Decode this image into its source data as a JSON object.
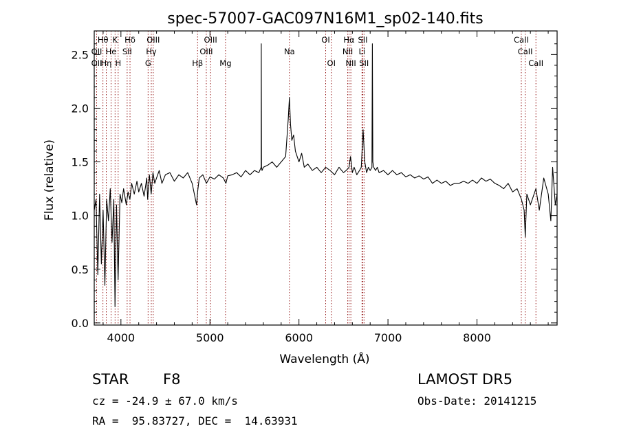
{
  "chart_data": {
    "type": "line",
    "title": "spec-57007-GAC097N16M1_sp02-140.fits",
    "xlabel": "Wavelength (Å)",
    "ylabel": "Flux (relative)",
    "xlim": [
      3700,
      8900
    ],
    "ylim": [
      -0.02,
      2.72
    ],
    "xticks": [
      4000,
      5000,
      6000,
      7000,
      8000
    ],
    "yticks": [
      0.0,
      0.5,
      1.0,
      1.5,
      2.0,
      2.5
    ],
    "xtick_labels": [
      "4000",
      "5000",
      "6000",
      "7000",
      "8000"
    ],
    "ytick_labels": [
      "0.0",
      "0.5",
      "1.0",
      "1.5",
      "2.0",
      "2.5"
    ],
    "grid": false,
    "line_color": "#000000",
    "marker_color": "#8b0000",
    "spectrum": {
      "x": [
        3700,
        3720,
        3740,
        3760,
        3780,
        3800,
        3820,
        3840,
        3860,
        3880,
        3900,
        3920,
        3933,
        3950,
        3968,
        3990,
        4010,
        4030,
        4060,
        4080,
        4101,
        4120,
        4150,
        4180,
        4200,
        4230,
        4260,
        4290,
        4300,
        4320,
        4340,
        4360,
        4380,
        4400,
        4430,
        4460,
        4500,
        4550,
        4600,
        4650,
        4700,
        4750,
        4800,
        4850,
        4861,
        4880,
        4920,
        4960,
        5000,
        5050,
        5100,
        5150,
        5180,
        5200,
        5250,
        5300,
        5350,
        5400,
        5450,
        5500,
        5550,
        5575,
        5577,
        5579,
        5585,
        5600,
        5650,
        5700,
        5750,
        5800,
        5850,
        5880,
        5893,
        5905,
        5920,
        5940,
        5960,
        5980,
        6000,
        6030,
        6060,
        6100,
        6150,
        6200,
        6250,
        6300,
        6350,
        6400,
        6450,
        6500,
        6530,
        6563,
        6580,
        6600,
        6620,
        6650,
        6680,
        6700,
        6720,
        6740,
        6760,
        6780,
        6800,
        6820,
        6825,
        6830,
        6840,
        6860,
        6880,
        6900,
        6950,
        7000,
        7050,
        7100,
        7150,
        7200,
        7250,
        7300,
        7350,
        7400,
        7450,
        7500,
        7550,
        7600,
        7650,
        7700,
        7750,
        7800,
        7850,
        7900,
        7950,
        8000,
        8050,
        8100,
        8150,
        8200,
        8250,
        8300,
        8350,
        8400,
        8450,
        8500,
        8530,
        8542,
        8560,
        8600,
        8662,
        8700,
        8750,
        8800,
        8830,
        8850,
        8880,
        8900
      ],
      "y": [
        1.05,
        1.15,
        0.45,
        1.2,
        0.55,
        1.05,
        0.35,
        1.15,
        0.95,
        1.25,
        0.75,
        1.15,
        0.15,
        1.1,
        0.4,
        1.2,
        1.12,
        1.25,
        1.1,
        1.22,
        1.15,
        1.3,
        1.2,
        1.32,
        1.22,
        1.3,
        1.18,
        1.35,
        1.15,
        1.38,
        1.2,
        1.4,
        1.3,
        1.35,
        1.42,
        1.3,
        1.38,
        1.4,
        1.32,
        1.38,
        1.35,
        1.4,
        1.3,
        1.1,
        1.22,
        1.35,
        1.38,
        1.3,
        1.36,
        1.34,
        1.38,
        1.35,
        1.3,
        1.37,
        1.38,
        1.4,
        1.36,
        1.42,
        1.38,
        1.42,
        1.4,
        1.45,
        2.6,
        1.45,
        1.42,
        1.45,
        1.47,
        1.5,
        1.45,
        1.5,
        1.55,
        1.9,
        2.1,
        1.85,
        1.7,
        1.75,
        1.6,
        1.55,
        1.5,
        1.58,
        1.45,
        1.48,
        1.42,
        1.45,
        1.4,
        1.45,
        1.42,
        1.38,
        1.45,
        1.4,
        1.42,
        1.45,
        1.55,
        1.4,
        1.45,
        1.38,
        1.42,
        1.45,
        1.8,
        1.5,
        1.4,
        1.45,
        1.42,
        1.45,
        2.6,
        1.5,
        1.45,
        1.42,
        1.45,
        1.4,
        1.42,
        1.38,
        1.42,
        1.38,
        1.4,
        1.36,
        1.38,
        1.35,
        1.37,
        1.34,
        1.36,
        1.3,
        1.33,
        1.3,
        1.32,
        1.28,
        1.3,
        1.3,
        1.32,
        1.3,
        1.33,
        1.3,
        1.35,
        1.32,
        1.34,
        1.3,
        1.28,
        1.25,
        1.3,
        1.22,
        1.25,
        1.15,
        1.05,
        0.8,
        1.2,
        1.1,
        1.25,
        1.05,
        1.35,
        1.2,
        0.95,
        1.45,
        1.1,
        1.2
      ]
    },
    "lines_top": [
      {
        "label": "Hθ",
        "x": 3798,
        "row": 1
      },
      {
        "label": "K",
        "x": 3934,
        "row": 1
      },
      {
        "label": "Hδ",
        "x": 4102,
        "row": 1
      },
      {
        "label": "OIII",
        "x": 4363,
        "row": 1
      },
      {
        "label": "OIII",
        "x": 5007,
        "row": 1
      },
      {
        "label": "OI",
        "x": 6300,
        "row": 1
      },
      {
        "label": "Hα",
        "x": 6563,
        "row": 1
      },
      {
        "label": "SII",
        "x": 6717,
        "row": 1
      },
      {
        "label": "CaII",
        "x": 8498,
        "row": 1
      },
      {
        "label": "OII",
        "x": 3727,
        "row": 2
      },
      {
        "label": "He",
        "x": 3889,
        "row": 2
      },
      {
        "label": "SII",
        "x": 4070,
        "row": 2
      },
      {
        "label": "Hγ",
        "x": 4341,
        "row": 2
      },
      {
        "label": "OIII",
        "x": 4959,
        "row": 2
      },
      {
        "label": "Na",
        "x": 5893,
        "row": 2
      },
      {
        "label": "NII",
        "x": 6548,
        "row": 2
      },
      {
        "label": "Li",
        "x": 6708,
        "row": 2
      },
      {
        "label": "CaII",
        "x": 8542,
        "row": 2
      },
      {
        "label": "OII",
        "x": 3727,
        "row": 3
      },
      {
        "label": "Hη",
        "x": 3835,
        "row": 3
      },
      {
        "label": "H",
        "x": 3969,
        "row": 3
      },
      {
        "label": "G",
        "x": 4305,
        "row": 3
      },
      {
        "label": "Hβ",
        "x": 4861,
        "row": 3
      },
      {
        "label": "Mg",
        "x": 5175,
        "row": 3
      },
      {
        "label": "OI",
        "x": 6364,
        "row": 3
      },
      {
        "label": "NII",
        "x": 6583,
        "row": 3
      },
      {
        "label": "SII",
        "x": 6731,
        "row": 3
      },
      {
        "label": "CaII",
        "x": 8662,
        "row": 3
      }
    ]
  },
  "info": {
    "class_label": "STAR",
    "subclass": "F8",
    "survey": "LAMOST DR5",
    "cz_text": "cz = -24.9 ± 67.0 km/s",
    "obs_date": "Obs-Date: 20141215",
    "radec": "RA =  95.83727, DEC =  14.63931"
  }
}
